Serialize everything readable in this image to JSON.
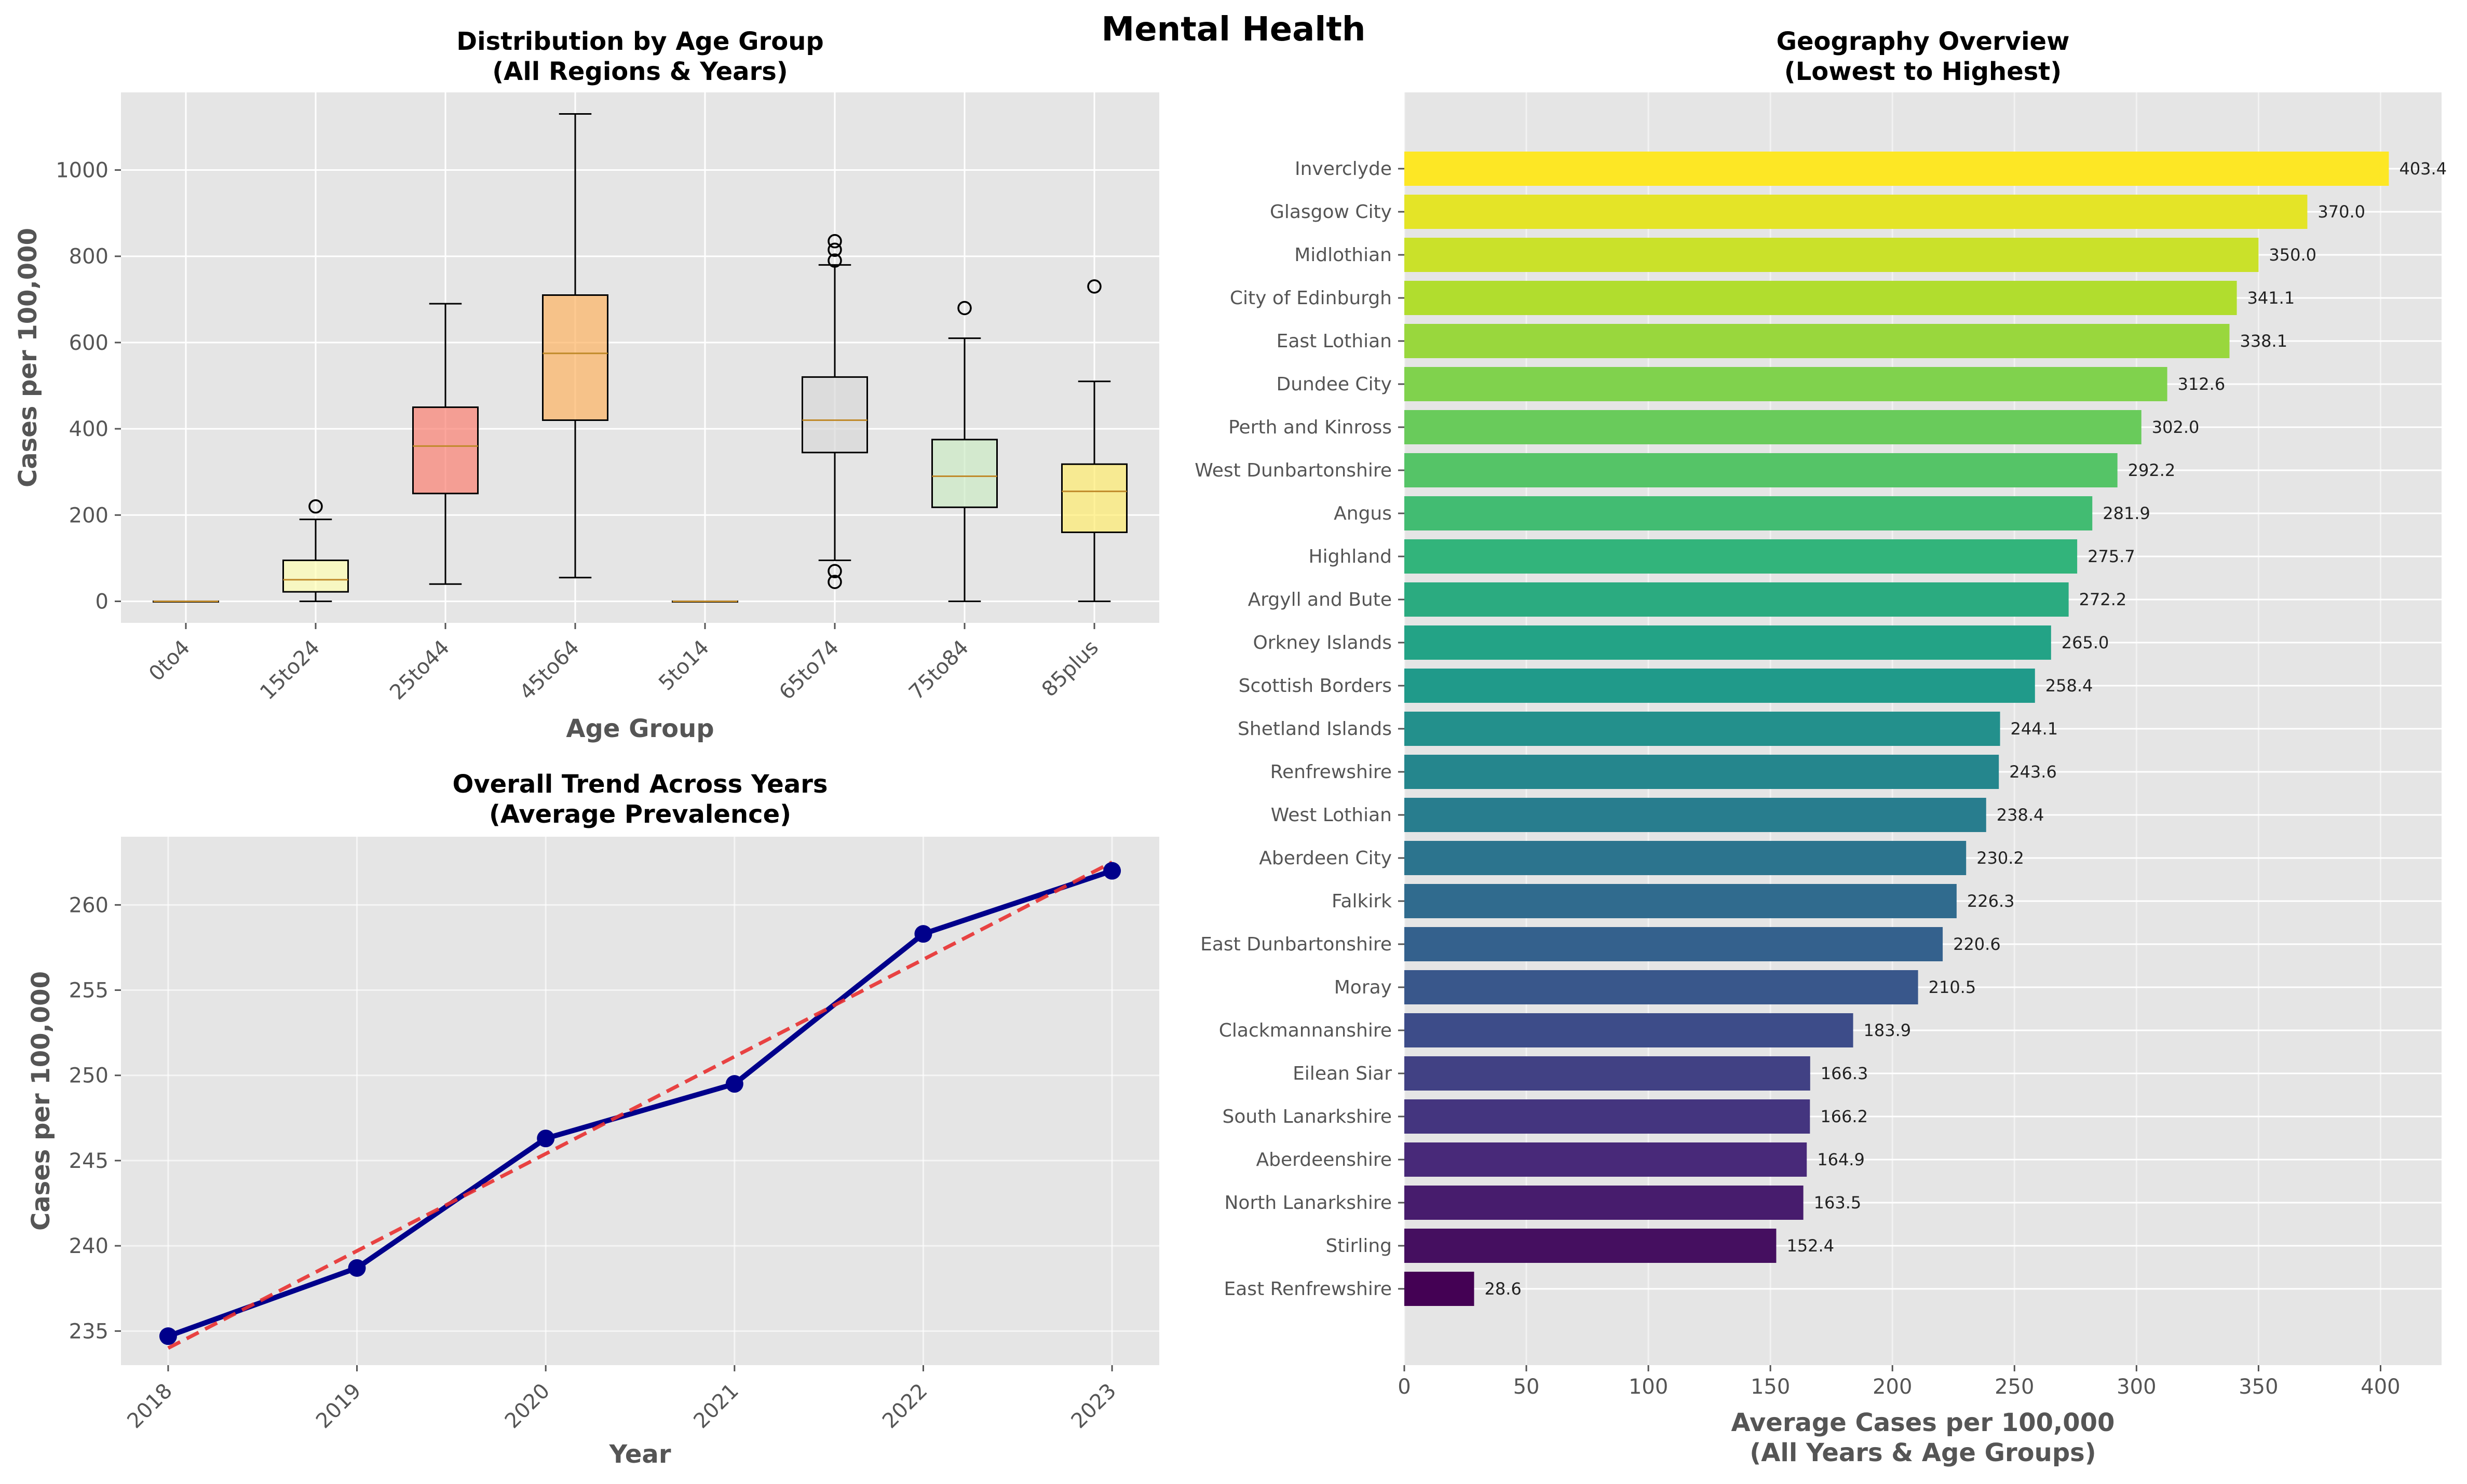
{
  "figure": {
    "suptitle": "Mental Health"
  },
  "chart_data": [
    {
      "type": "box",
      "title": "Distribution by Age Group\n(All Regions & Years)",
      "xlabel": "Age Group",
      "ylabel": "Cases per 100,000",
      "ylim": [
        -50,
        1180
      ],
      "yticks": [
        0,
        200,
        400,
        600,
        800,
        1000
      ],
      "categories": [
        "0to4",
        "15to24",
        "25to44",
        "45to64",
        "5to14",
        "65to74",
        "75to84",
        "85plus"
      ],
      "boxes": [
        {
          "category": "0to4",
          "whisker_low": 0,
          "q1": 0,
          "median": 0,
          "q3": 0,
          "whisker_high": 0,
          "outliers": [],
          "color": "#ffffb3"
        },
        {
          "category": "15to24",
          "whisker_low": 0,
          "q1": 22,
          "median": 50,
          "q3": 95,
          "whisker_high": 190,
          "outliers": [
            220
          ],
          "color": "#ffffb3"
        },
        {
          "category": "25to44",
          "whisker_low": 40,
          "q1": 250,
          "median": 360,
          "q3": 450,
          "whisker_high": 690,
          "outliers": [],
          "color": "#fb8072"
        },
        {
          "category": "45to64",
          "whisker_low": 55,
          "q1": 420,
          "median": 575,
          "q3": 710,
          "whisker_high": 1130,
          "outliers": [],
          "color": "#fdb462"
        },
        {
          "category": "5to14",
          "whisker_low": 0,
          "q1": 0,
          "median": 0,
          "q3": 0,
          "whisker_high": 0,
          "outliers": [],
          "color": "#fccde5"
        },
        {
          "category": "65to74",
          "whisker_low": 95,
          "q1": 345,
          "median": 420,
          "q3": 520,
          "whisker_high": 780,
          "outliers": [
            45,
            70,
            790,
            815,
            835
          ],
          "color": "#d9d9d9"
        },
        {
          "category": "75to84",
          "whisker_low": 0,
          "q1": 218,
          "median": 290,
          "q3": 375,
          "whisker_high": 610,
          "outliers": [
            680
          ],
          "color": "#ccebc5"
        },
        {
          "category": "85plus",
          "whisker_low": 0,
          "q1": 160,
          "median": 255,
          "q3": 318,
          "whisker_high": 510,
          "outliers": [
            730
          ],
          "color": "#ffed6f"
        }
      ]
    },
    {
      "type": "line",
      "title": "Overall Trend Across Years\n(Average Prevalence)",
      "xlabel": "Year",
      "ylabel": "Cases per 100,000",
      "x": [
        2018,
        2019,
        2020,
        2021,
        2022,
        2023
      ],
      "ylim": [
        233,
        264
      ],
      "yticks": [
        235,
        240,
        245,
        250,
        255,
        260
      ],
      "series": [
        {
          "values": [
            234.7,
            238.7,
            246.3,
            249.5,
            258.3,
            262.0
          ],
          "color": "#00008b",
          "style": "solid-markers"
        },
        {
          "values": [
            234.0,
            239.7,
            245.4,
            251.1,
            256.8,
            262.5
          ],
          "color": "#e83030",
          "style": "dashed-trend"
        }
      ]
    },
    {
      "type": "barh",
      "title": "Geography Overview\n(Lowest to Highest)",
      "xlabel": "Average Cases per 100,000\n(All Years & Age Groups)",
      "xlim": [
        0,
        425
      ],
      "xticks": [
        0,
        50,
        100,
        150,
        200,
        250,
        300,
        350,
        400
      ],
      "colormap": "viridis",
      "categories": [
        "Inverclyde",
        "Glasgow City",
        "Midlothian",
        "City of Edinburgh",
        "East Lothian",
        "Dundee City",
        "Perth and Kinross",
        "West Dunbartonshire",
        "Angus",
        "Highland",
        "Argyll and Bute",
        "Orkney Islands",
        "Scottish Borders",
        "Shetland Islands",
        "Renfrewshire",
        "West Lothian",
        "Aberdeen City",
        "Falkirk",
        "East Dunbartonshire",
        "Moray",
        "Clackmannanshire",
        "Eilean Siar",
        "South Lanarkshire",
        "Aberdeenshire",
        "North Lanarkshire",
        "Stirling",
        "East Renfrewshire"
      ],
      "values": [
        403.4,
        370.0,
        350.0,
        341.1,
        338.1,
        312.6,
        302.0,
        292.2,
        281.9,
        275.7,
        272.2,
        265.0,
        258.4,
        244.1,
        243.6,
        238.4,
        230.2,
        226.3,
        220.6,
        210.5,
        183.9,
        166.3,
        166.2,
        164.9,
        163.5,
        152.4,
        28.6
      ],
      "value_labels": [
        "403.4",
        "370.0",
        "350.0",
        "341.1",
        "338.1",
        "312.6",
        "302.0",
        "292.2",
        "281.9",
        "275.7",
        "272.2",
        "265.0",
        "258.4",
        "244.1",
        "243.6",
        "238.4",
        "230.2",
        "226.3",
        "220.6",
        "210.5",
        "183.9",
        "166.3",
        "166.2",
        "164.9",
        "163.5",
        "152.4",
        "28.6"
      ]
    }
  ]
}
